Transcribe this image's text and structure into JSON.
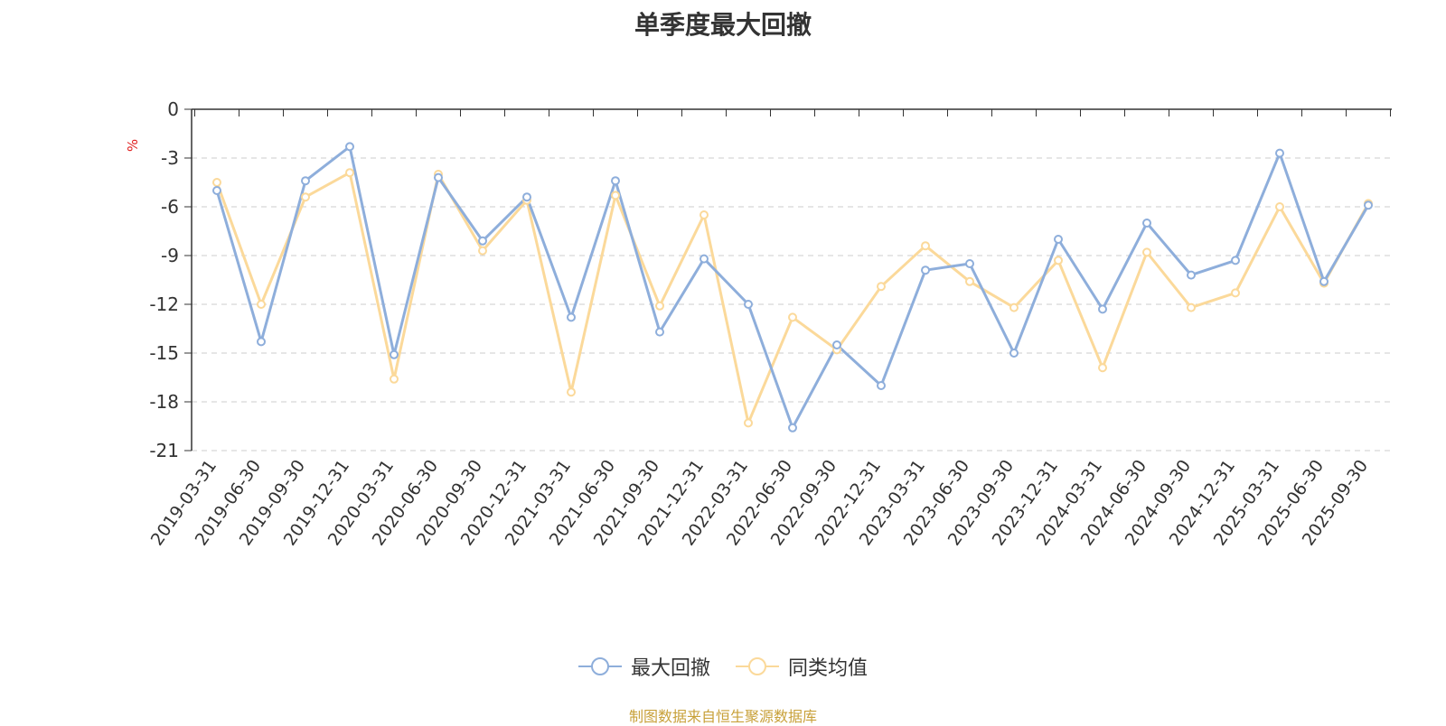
{
  "chart_data": {
    "type": "line",
    "title": "单季度最大回撤",
    "ylabel": "%",
    "ylim": [
      -21,
      0
    ],
    "yticks": [
      0,
      -3,
      -6,
      -9,
      -12,
      -15,
      -18,
      -21
    ],
    "grid": true,
    "legend_position": "bottom-center",
    "categories": [
      "2019-03-31",
      "2019-06-30",
      "2019-09-30",
      "2019-12-31",
      "2020-03-31",
      "2020-06-30",
      "2020-09-30",
      "2020-12-31",
      "2021-03-31",
      "2021-06-30",
      "2021-09-30",
      "2021-12-31",
      "2022-03-31",
      "2022-06-30",
      "2022-09-30",
      "2022-12-31",
      "2023-03-31",
      "2023-06-30",
      "2023-09-30",
      "2023-12-31",
      "2024-03-31",
      "2024-06-30",
      "2024-09-30",
      "2024-12-31",
      "2025-03-31",
      "2025-06-30",
      "2025-09-30"
    ],
    "series": [
      {
        "name": "最大回撤",
        "color": "#8eaedb",
        "values": [
          -5.0,
          -14.3,
          -4.4,
          -2.3,
          -15.1,
          -4.2,
          -8.1,
          -5.4,
          -12.8,
          -4.4,
          -13.7,
          -9.2,
          -12.0,
          -19.6,
          -14.5,
          -17.0,
          -9.9,
          -9.5,
          -15.0,
          -8.0,
          -12.3,
          -7.0,
          -10.2,
          -9.3,
          -2.7,
          -10.6,
          -5.9
        ]
      },
      {
        "name": "同类均值",
        "color": "#fbd99a",
        "values": [
          -4.5,
          -12.0,
          -5.4,
          -3.9,
          -16.6,
          -4.0,
          -8.7,
          -5.6,
          -17.4,
          -5.3,
          -12.1,
          -6.5,
          -19.3,
          -12.8,
          -14.8,
          -10.9,
          -8.4,
          -10.6,
          -12.2,
          -9.3,
          -15.9,
          -8.8,
          -12.2,
          -11.3,
          -6.0,
          -10.7,
          -5.8
        ]
      }
    ]
  },
  "source_note": "制图数据来自恒生聚源数据库"
}
